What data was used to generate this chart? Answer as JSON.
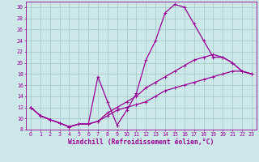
{
  "xlabel": "Windchill (Refroidissement éolien,°C)",
  "bg_color": "#cce8e8",
  "line_color": "#990099",
  "grid_color": "#aacccc",
  "xlim": [
    -0.5,
    23.5
  ],
  "ylim": [
    8,
    31
  ],
  "yticks": [
    8,
    10,
    12,
    14,
    16,
    18,
    20,
    22,
    24,
    26,
    28,
    30
  ],
  "xticks": [
    0,
    1,
    2,
    3,
    4,
    5,
    6,
    7,
    8,
    9,
    10,
    11,
    12,
    13,
    14,
    15,
    16,
    17,
    18,
    19,
    20,
    21,
    22,
    23
  ],
  "line1_x": [
    0,
    1,
    2,
    3,
    4,
    5,
    6,
    7,
    8,
    9,
    10,
    11,
    12,
    13,
    14,
    15,
    16,
    17,
    18,
    19,
    20,
    21,
    22,
    23
  ],
  "line1_y": [
    12,
    10.5,
    9.8,
    9.2,
    8.5,
    9.0,
    9.0,
    17.5,
    13.0,
    8.8,
    11.5,
    14.5,
    20.5,
    24.0,
    29.0,
    30.5,
    30.0,
    27.0,
    24.0,
    21.0,
    21.0,
    20.0,
    18.5,
    18.0
  ],
  "line2_x": [
    0,
    1,
    2,
    3,
    4,
    5,
    6,
    7,
    8,
    9,
    10,
    11,
    12,
    13,
    14,
    15,
    16,
    17,
    18,
    19,
    20,
    21,
    22,
    23
  ],
  "line2_y": [
    12,
    10.5,
    9.8,
    9.2,
    8.5,
    9.0,
    9.0,
    9.5,
    11.0,
    12.0,
    13.0,
    14.0,
    15.5,
    16.5,
    17.5,
    18.5,
    19.5,
    20.5,
    21.0,
    21.5,
    21.0,
    20.0,
    18.5,
    18.0
  ],
  "line3_x": [
    0,
    1,
    2,
    3,
    4,
    5,
    6,
    7,
    8,
    9,
    10,
    11,
    12,
    13,
    14,
    15,
    16,
    17,
    18,
    19,
    20,
    21,
    22,
    23
  ],
  "line3_y": [
    12,
    10.5,
    9.8,
    9.2,
    8.5,
    9.0,
    9.0,
    9.5,
    10.5,
    11.5,
    12.0,
    12.5,
    13.0,
    14.0,
    15.0,
    15.5,
    16.0,
    16.5,
    17.0,
    17.5,
    18.0,
    18.5,
    18.5,
    18.0
  ],
  "markersize": 3,
  "linewidth": 0.9,
  "tick_fontsize": 4.8,
  "xlabel_fontsize": 5.8
}
